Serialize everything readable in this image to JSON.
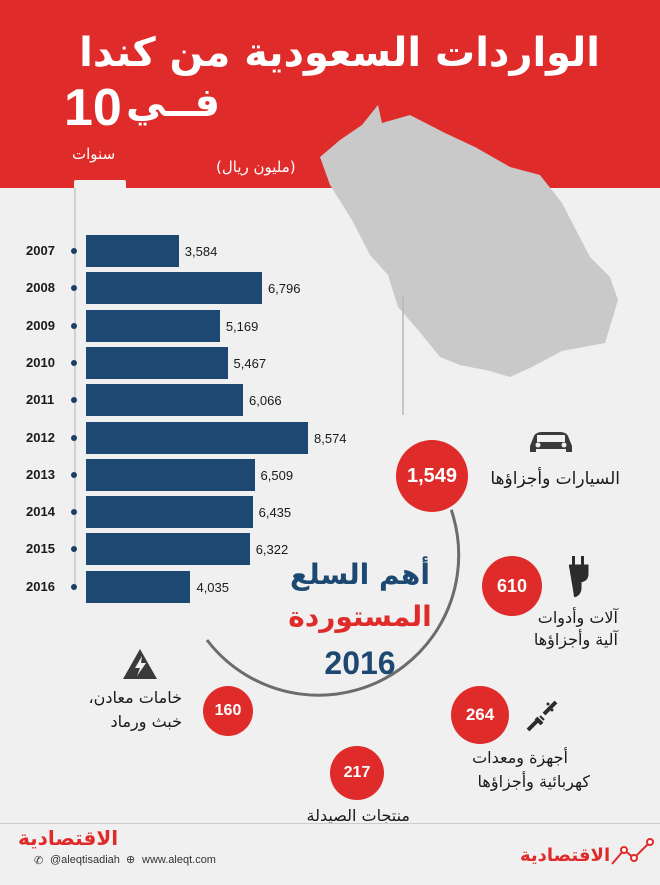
{
  "header": {
    "title": "الواردات السعودية من كندا",
    "years_number": "10",
    "years_prefix": "فــي",
    "years_label": "سنوات",
    "unit": "(مليون ريال)"
  },
  "chart_data": {
    "type": "bar",
    "orientation": "horizontal",
    "categories": [
      "2007",
      "2008",
      "2009",
      "2010",
      "2011",
      "2012",
      "2013",
      "2014",
      "2015",
      "2016"
    ],
    "values": [
      3584,
      6796,
      5169,
      5467,
      6066,
      8574,
      6509,
      6435,
      6322,
      4035
    ],
    "value_labels": [
      "3,584",
      "6,796",
      "5,169",
      "5,467",
      "6,066",
      "8,574",
      "6,509",
      "6,435",
      "6,322",
      "4,035"
    ],
    "ylabel": "(مليون ريال)",
    "bar_color": "#1d4872"
  },
  "top_goods": {
    "heading_line1": "أهم السلع",
    "heading_line2": "المستوردة",
    "heading_year": "2016",
    "items": [
      {
        "value": "1,549",
        "label": "السيارات وأجزاؤها",
        "icon": "car-icon"
      },
      {
        "value": "610",
        "label_line1": "آلات وأدوات",
        "label_line2": "آلية وأجزاؤها",
        "icon": "plug-icon"
      },
      {
        "value": "264",
        "label_line1": "أجهزة ومعدات",
        "label_line2": "كهربائية وأجزاؤها",
        "icon": "wires-icon"
      },
      {
        "value": "217",
        "label": "منتجات الصيدلة",
        "icon": ""
      },
      {
        "value": "160",
        "label_line1": "خامات معادن،",
        "label_line2": "خبث ورماد",
        "icon": "warning-icon"
      }
    ]
  },
  "colors": {
    "red": "#e02b2b",
    "navy": "#1d4872",
    "background": "#f0f0f0"
  },
  "footer": {
    "logo": "الاقتصادية",
    "twitter": "@aleqtisadiah",
    "website": "www.aleqt.com",
    "logo_right": "الاقتصادية"
  }
}
